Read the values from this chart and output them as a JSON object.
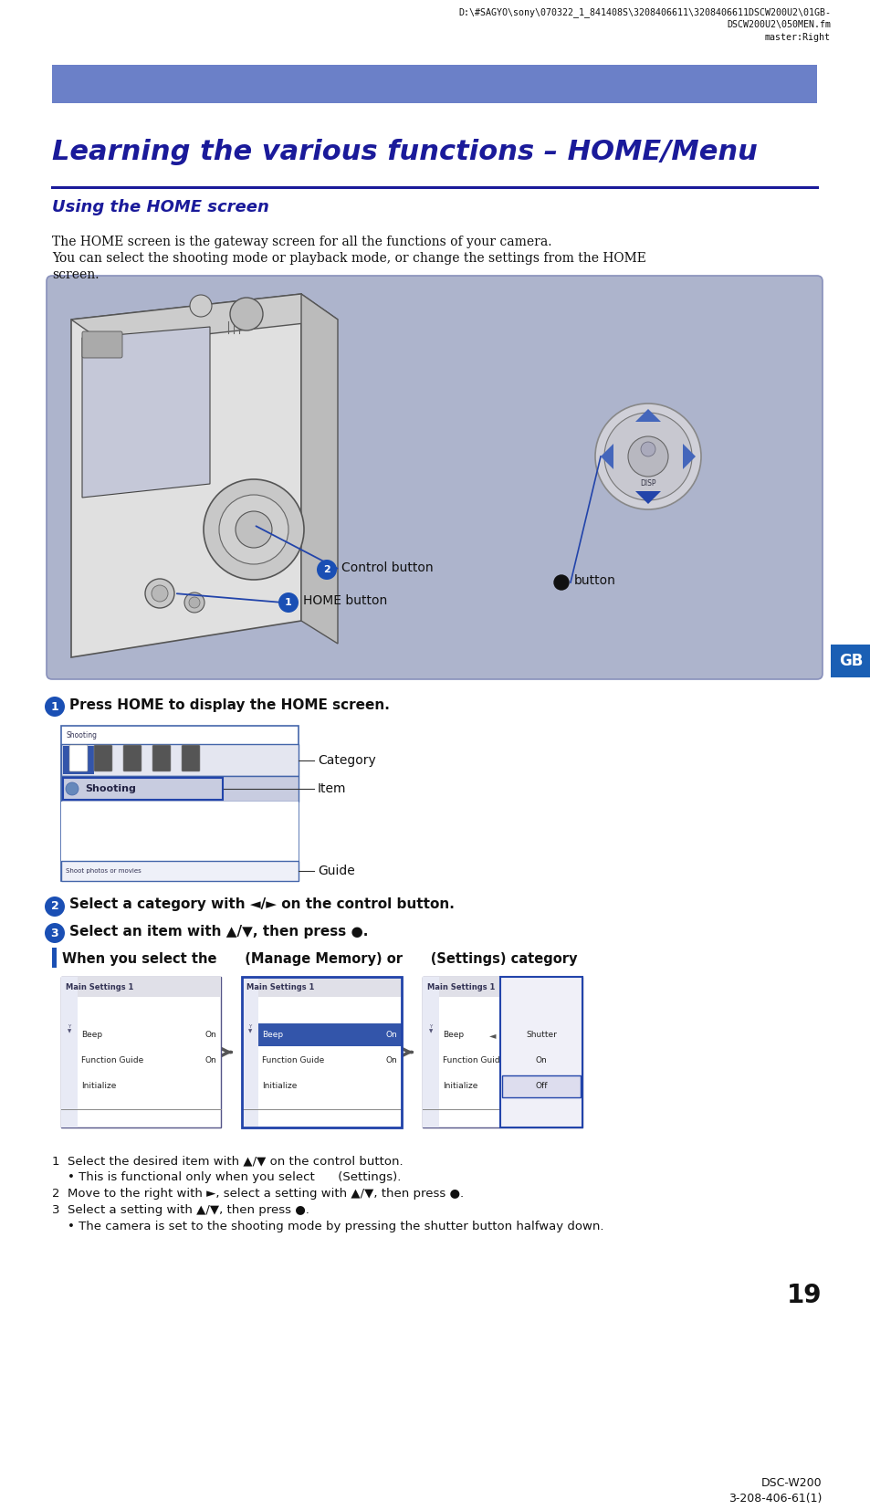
{
  "bg_color": "#ffffff",
  "header_text1": "D:\\#SAGYO\\sony\\070322_1_841408S\\3208406611\\3208406611DSCW200U2\\01GB-",
  "header_text2": "DSCW200U2\\050MEN.fm",
  "header_text3": "master:Right",
  "blue_bar_color": "#6b80c8",
  "title": "Learning the various functions – HOME/Menu",
  "title_color": "#1a1a9a",
  "section_title": "Using the HOME screen",
  "section_title_color": "#1a1a9a",
  "section_line_color": "#1a1a9a",
  "body_text1": "The HOME screen is the gateway screen for all the functions of your camera.",
  "body_text2": "You can select the shooting mode or playback mode, or change the settings from the HOME",
  "body_text3": "screen.",
  "camera_box_color": "#adb4cc",
  "step1_text": "Press HOME to display the HOME screen.",
  "step2_text": "Select a category with ◄/► on the control button.",
  "step3_text": "Select an item with ▲/▼, then press ●.",
  "when_text": "When you select the      (Manage Memory) or      (Settings) category",
  "gb_color": "#1a5fb4",
  "label1": "Control button",
  "label2": "button",
  "label3": "HOME button",
  "cat_label": "Category",
  "item_label": "Item",
  "guide_label": "Guide",
  "note1": "1  Select the desired item with ▲/▼ on the control button.",
  "note1b": "    • This is functional only when you select      (Settings).",
  "note2": "2  Move to the right with ►, select a setting with ▲/▼, then press ●.",
  "note3": "3  Select a setting with ▲/▼, then press ●.",
  "note3b": "    • The camera is set to the shooting mode by pressing the shutter button halfway down.",
  "page_num": "19",
  "footer1": "DSC-W200",
  "footer2": "3-208-406-61(1)"
}
